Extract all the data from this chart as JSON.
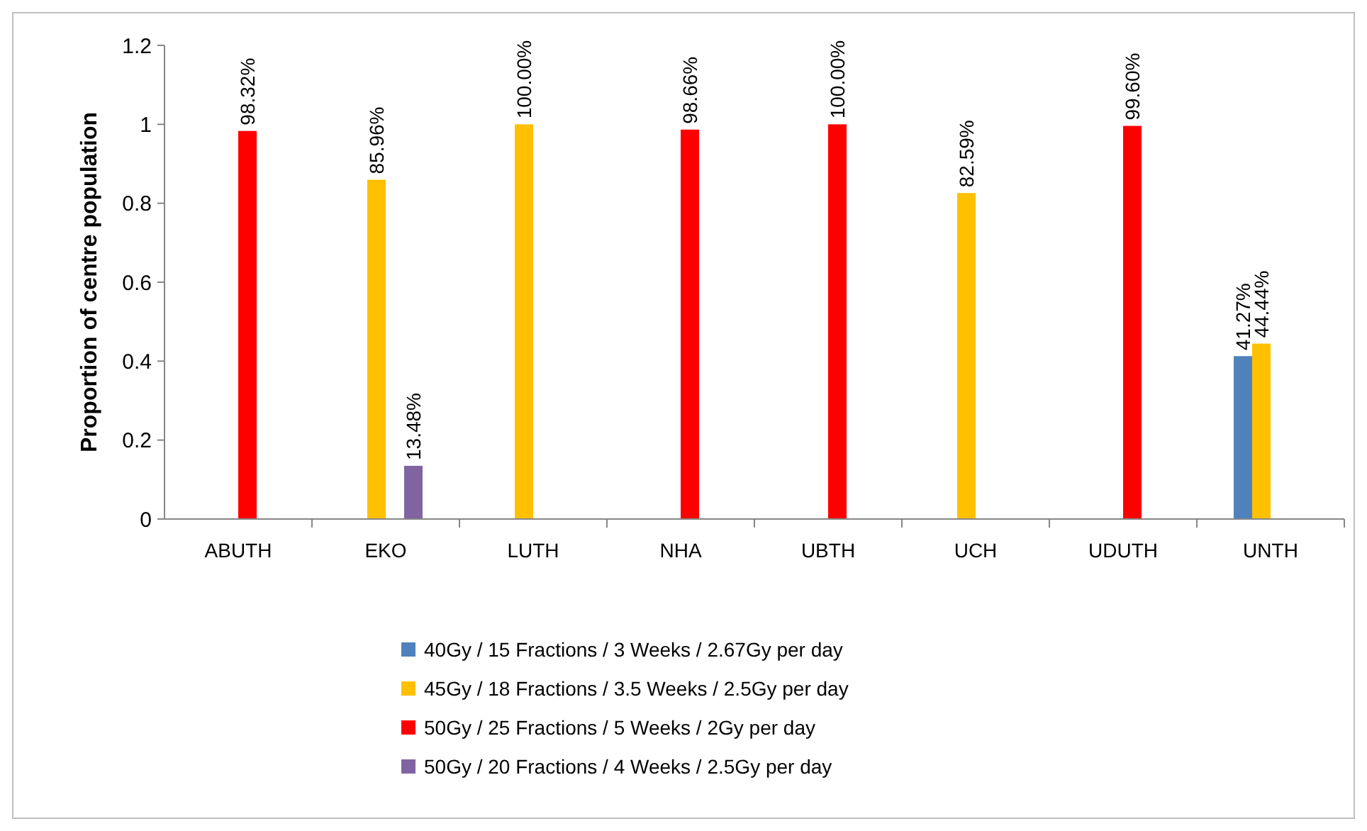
{
  "chart_data": {
    "type": "bar",
    "ylabel": "Proportion of centre population",
    "categories": [
      "ABUTH",
      "EKO",
      "LUTH",
      "NHA",
      "UBTH",
      "UCH",
      "UDUTH",
      "UNTH"
    ],
    "series": [
      {
        "name": "40Gy / 15 Fractions / 3 Weeks / 2.67Gy per day",
        "color": "#4f81bd",
        "values": [
          null,
          null,
          null,
          null,
          null,
          null,
          null,
          0.4127
        ],
        "value_labels": [
          null,
          null,
          null,
          null,
          null,
          null,
          null,
          "41.27%"
        ]
      },
      {
        "name": "45Gy / 18 Fractions / 3.5 Weeks / 2.5Gy per day",
        "color": "#ffc000",
        "values": [
          null,
          0.8596,
          1.0,
          null,
          null,
          0.8259,
          null,
          0.4444
        ],
        "value_labels": [
          null,
          "85.96%",
          "100.00%",
          null,
          null,
          "82.59%",
          null,
          "44.44%"
        ]
      },
      {
        "name": "50Gy / 25 Fractions / 5 Weeks / 2Gy per day",
        "color": "#ff0000",
        "values": [
          0.9832,
          null,
          null,
          0.9866,
          1.0,
          null,
          0.996,
          null
        ],
        "value_labels": [
          "98.32%",
          null,
          null,
          "98.66%",
          "100.00%",
          null,
          "99.60%",
          null
        ]
      },
      {
        "name": "50Gy / 20 Fractions / 4 Weeks / 2.5Gy per day",
        "color": "#8064a2",
        "values": [
          null,
          0.1348,
          null,
          null,
          null,
          null,
          null,
          null
        ],
        "value_labels": [
          null,
          "13.48%",
          null,
          null,
          null,
          null,
          null,
          null
        ]
      }
    ],
    "ylim": [
      0,
      1.2
    ],
    "yticks": [
      0,
      0.2,
      0.4,
      0.6,
      0.8,
      1,
      1.2
    ],
    "grid": false,
    "legend": "bottom"
  }
}
